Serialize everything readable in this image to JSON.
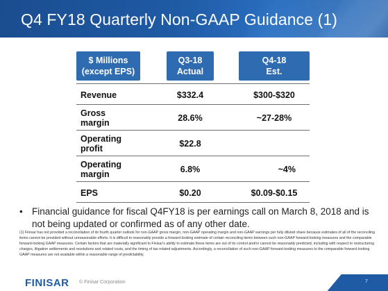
{
  "title": "Q4 FY18 Quarterly Non-GAAP Guidance (1)",
  "table": {
    "headers": [
      [
        "$ Millions",
        "(except EPS)"
      ],
      [
        "Q3-18",
        "Actual"
      ],
      [
        "Q4-18",
        "Est."
      ]
    ],
    "rows": [
      {
        "label": "Revenue",
        "q3": "$332.4",
        "q4": "$300-$320"
      },
      {
        "label": "Gross margin",
        "q3": "28.6%",
        "q4": "~27-28%"
      },
      {
        "label": "Operating profit",
        "q3": "$22.8",
        "q4": ""
      },
      {
        "label": "Operating margin",
        "q3": "6.8%",
        "q4": "~4%"
      },
      {
        "label": "EPS",
        "q3": "$0.20",
        "q4": "$0.09-$0.15"
      }
    ]
  },
  "bullet": "Financial guidance for fiscal Q4FY18 is per earnings call on March 8, 2018 and is not being updated or confirmed as of any other date.",
  "footnote": "(1) Finisar has not provided a reconciliation of its fourth quarter outlook for non-GAAP gross margin, non-GAAP operating margin and non-GAAP earnings per fully diluted share because estimates of all of the reconciling items cannot be provided without unreasonable efforts. It is difficult to reasonably provide a forward-looking estimate of certain reconciling items between such non-GAAP forward-looking measures and the comparable forward-looking GAAP measures. Certain factors that are materially significant to Finisar's ability to estimate these items are out of its control and/or cannot be reasonably predicted, including with respect to restructuring charges, litigation settlements and resolutions and related costs, and the timing of tax related adjustments. Accordingly, a reconciliation of such non-GAAP forward-looking measures to the comparable forward-looking GAAP measures are not available within a reasonable range of predictability.",
  "footer": {
    "logo": "FINISAR",
    "copyright": "© Finisar Corporation",
    "page": "7"
  }
}
